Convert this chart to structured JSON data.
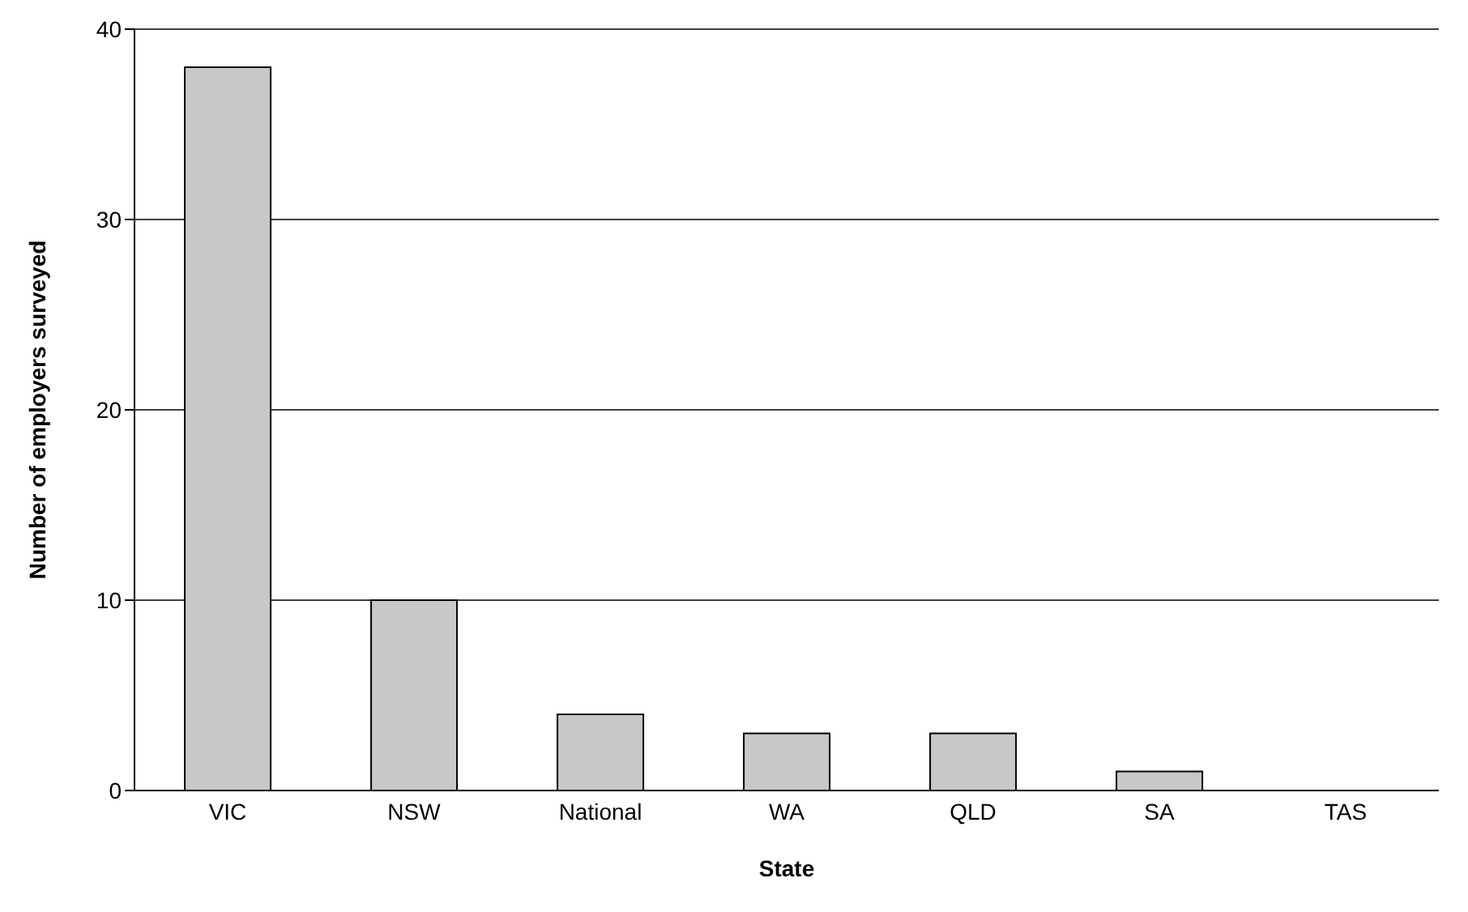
{
  "chart_data": {
    "type": "bar",
    "xlabel": "State",
    "ylabel": "Number of employers surveyed",
    "categories": [
      "VIC",
      "NSW",
      "National",
      "WA",
      "QLD",
      "SA",
      "TAS"
    ],
    "values": [
      38,
      10,
      4,
      3,
      3,
      1,
      0
    ],
    "color": "#c8c8c8",
    "ylim": [
      0,
      40
    ],
    "yticks": [
      0,
      10,
      20,
      30,
      40
    ],
    "grid": "y",
    "legend": false
  }
}
